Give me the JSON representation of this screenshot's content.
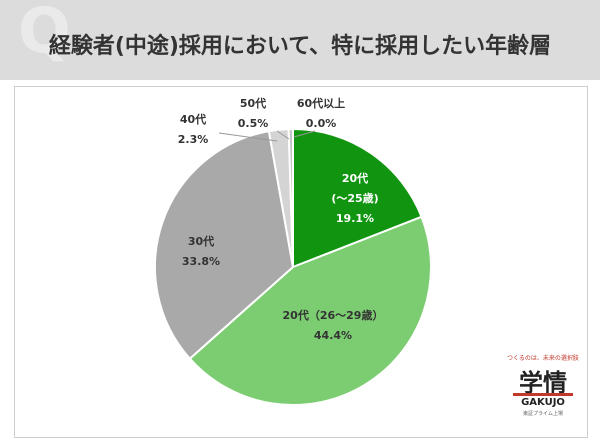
{
  "header": {
    "title": "経験者(中途)採用において、特に採用したい年齢層",
    "watermark": "Q"
  },
  "chart_data": {
    "type": "pie",
    "title": "経験者(中途)採用において、特に採用したい年齢層",
    "start_angle_deg": 0,
    "direction": "clockwise",
    "slices": [
      {
        "label": "20代\n(～25歳)",
        "value": 19.1,
        "value_label": "19.1%",
        "color": "#119511",
        "label_color": "#ffffff"
      },
      {
        "label": "20代（26～29歳）",
        "value": 44.4,
        "value_label": "44.4%",
        "color": "#7ccd72",
        "label_color": "#333333"
      },
      {
        "label": "30代",
        "value": 33.8,
        "value_label": "33.8%",
        "color": "#a9a9a9",
        "label_color": "#333333"
      },
      {
        "label": "40代",
        "value": 2.3,
        "value_label": "2.3%",
        "color": "#d4d4d4",
        "label_color": "#333333"
      },
      {
        "label": "50代",
        "value": 0.5,
        "value_label": "0.5%",
        "color": "#c4c4c4",
        "label_color": "#333333"
      },
      {
        "label": "60代以上",
        "value": 0.0,
        "value_label": "0.0%",
        "color": "#bbbbbb",
        "label_color": "#333333"
      }
    ],
    "legend": "none"
  },
  "logo": {
    "tagline": "つくるのは、未来の選択肢",
    "main": "学情",
    "english": "GAKUJO",
    "sub": "東証プライム上場"
  }
}
